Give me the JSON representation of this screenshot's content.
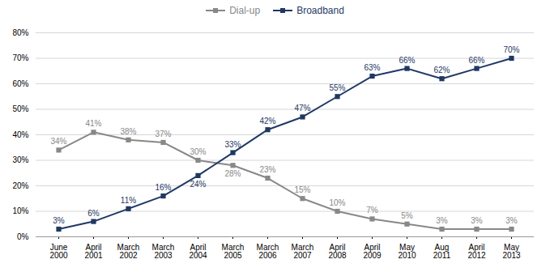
{
  "chart_data": {
    "type": "line",
    "categories": [
      "June\n2000",
      "April\n2001",
      "March\n2002",
      "March\n2003",
      "April\n2004",
      "March\n2005",
      "March\n2006",
      "March\n2007",
      "April\n2008",
      "April\n2009",
      "May\n2010",
      "Aug\n2011",
      "April\n2012",
      "May\n2013"
    ],
    "series": [
      {
        "name": "Dial-up",
        "color": "#888888",
        "marker": "square",
        "values": [
          34,
          41,
          38,
          37,
          30,
          28,
          23,
          15,
          10,
          7,
          5,
          3,
          3,
          3
        ],
        "value_labels": [
          "34%",
          "41%",
          "38%",
          "37%",
          "30%",
          "28%",
          "23%",
          "15%",
          "10%",
          "7%",
          "5%",
          "3%",
          "3%",
          "3%"
        ]
      },
      {
        "name": "Broadband",
        "color": "#1F3864",
        "marker": "square",
        "values": [
          3,
          6,
          11,
          16,
          24,
          33,
          42,
          47,
          55,
          63,
          66,
          62,
          66,
          70
        ],
        "value_labels": [
          "3%",
          "6%",
          "11%",
          "16%",
          "24%",
          "33%",
          "42%",
          "47%",
          "55%",
          "63%",
          "66%",
          "62%",
          "66%",
          "70%"
        ]
      }
    ],
    "ylim": [
      0,
      80
    ],
    "yticks": [
      {
        "value": 0,
        "label": "0%"
      },
      {
        "value": 10,
        "label": "10%"
      },
      {
        "value": 20,
        "label": "20%"
      },
      {
        "value": 30,
        "label": "30%"
      },
      {
        "value": 40,
        "label": "40%"
      },
      {
        "value": 50,
        "label": "50%"
      },
      {
        "value": 60,
        "label": "60%"
      },
      {
        "value": 70,
        "label": "70%"
      },
      {
        "value": 80,
        "label": "80%"
      }
    ],
    "grid": true,
    "legend": "top",
    "data_labels": true
  }
}
